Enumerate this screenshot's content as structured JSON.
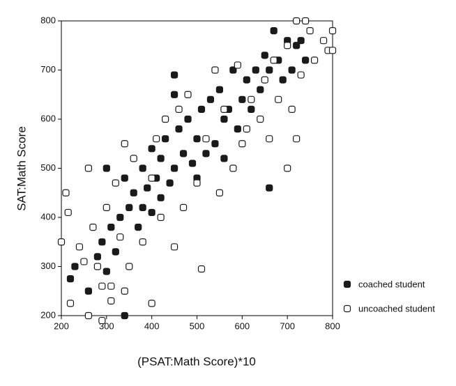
{
  "chart_data": {
    "type": "scatter",
    "x_label": "(PSAT:Math Score)*10",
    "y_label": "SAT:Math Score",
    "xlim": [
      200,
      800
    ],
    "ylim": [
      200,
      800
    ],
    "xticks": [
      200,
      300,
      400,
      500,
      600,
      700,
      800
    ],
    "yticks": [
      200,
      300,
      400,
      500,
      600,
      700,
      800
    ],
    "series": [
      {
        "name": "coached student",
        "color": "#1a1a1a",
        "filled": true,
        "x": [
          220,
          230,
          260,
          280,
          290,
          300,
          310,
          320,
          330,
          340,
          340,
          350,
          360,
          370,
          380,
          380,
          390,
          400,
          400,
          410,
          420,
          420,
          430,
          440,
          450,
          450,
          460,
          470,
          480,
          490,
          500,
          500,
          510,
          520,
          530,
          540,
          550,
          560,
          560,
          570,
          580,
          590,
          600,
          610,
          620,
          630,
          640,
          650,
          660,
          670,
          680,
          690,
          700,
          710,
          720,
          730,
          740,
          660,
          450,
          300
        ],
        "values": [
          275,
          300,
          250,
          320,
          350,
          290,
          380,
          330,
          400,
          200,
          480,
          420,
          450,
          380,
          500,
          420,
          460,
          410,
          540,
          480,
          520,
          440,
          560,
          470,
          690,
          500,
          580,
          530,
          600,
          510,
          480,
          560,
          620,
          530,
          640,
          550,
          660,
          600,
          520,
          620,
          700,
          580,
          640,
          680,
          620,
          700,
          660,
          730,
          700,
          780,
          720,
          680,
          760,
          700,
          750,
          760,
          720,
          460,
          650,
          500
        ]
      },
      {
        "name": "uncoached student",
        "color": "#1a1a1a",
        "filled": false,
        "x": [
          200,
          210,
          215,
          220,
          240,
          250,
          260,
          260,
          270,
          280,
          290,
          300,
          310,
          320,
          330,
          340,
          350,
          360,
          380,
          400,
          400,
          410,
          420,
          430,
          450,
          460,
          470,
          480,
          500,
          510,
          520,
          540,
          550,
          560,
          580,
          590,
          600,
          610,
          620,
          640,
          650,
          660,
          670,
          680,
          700,
          700,
          710,
          720,
          720,
          730,
          740,
          750,
          760,
          780,
          790,
          800,
          800,
          340,
          290,
          310
        ],
        "values": [
          350,
          450,
          410,
          225,
          340,
          310,
          500,
          200,
          380,
          300,
          190,
          420,
          260,
          470,
          360,
          550,
          300,
          520,
          350,
          225,
          480,
          560,
          400,
          600,
          340,
          620,
          420,
          650,
          470,
          295,
          560,
          700,
          450,
          620,
          500,
          710,
          550,
          580,
          640,
          600,
          680,
          560,
          720,
          640,
          500,
          750,
          620,
          800,
          560,
          690,
          800,
          780,
          720,
          760,
          740,
          780,
          740,
          250,
          260,
          230
        ]
      }
    ]
  }
}
